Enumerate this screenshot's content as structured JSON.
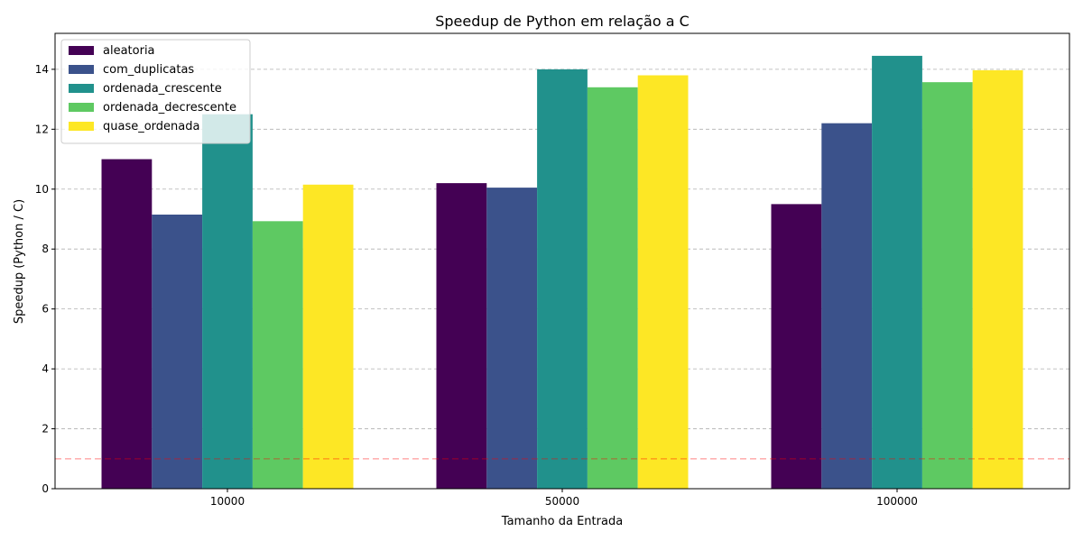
{
  "chart_data": {
    "type": "bar",
    "title": "Speedup de Python em relação a C",
    "xlabel": "Tamanho da Entrada",
    "ylabel": "Speedup (Python / C)",
    "categories": [
      "10000",
      "50000",
      "100000"
    ],
    "ylim": [
      0,
      15.2
    ],
    "yticks": [
      0,
      2,
      4,
      6,
      8,
      10,
      12,
      14
    ],
    "grid": "y-dashed",
    "legend_position": "top-left",
    "reference_line": {
      "y": 1.0,
      "style": "dashed",
      "color": "#ff0000"
    },
    "series": [
      {
        "name": "aleatoria",
        "color": "#440154",
        "values": [
          11.0,
          10.2,
          9.5
        ]
      },
      {
        "name": "com_duplicatas",
        "color": "#3b528b",
        "values": [
          9.15,
          10.05,
          12.2
        ]
      },
      {
        "name": "ordenada_crescente",
        "color": "#21918c",
        "values": [
          12.5,
          14.0,
          14.45
        ]
      },
      {
        "name": "ordenada_decrescente",
        "color": "#5ec962",
        "values": [
          8.93,
          13.4,
          13.57
        ]
      },
      {
        "name": "quase_ordenada",
        "color": "#fde725",
        "values": [
          10.15,
          13.8,
          13.97
        ]
      }
    ]
  }
}
